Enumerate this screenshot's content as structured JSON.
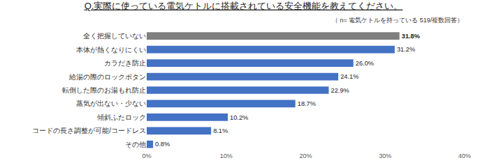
{
  "chart_data": {
    "type": "bar",
    "orientation": "horizontal",
    "title": "Q.実際に使っている電気ケトルに搭載されている安全機能を教えてください。",
    "subtitle": "（ n= 電気ケトルを持っている 519/複数回答）",
    "categories": [
      "全く把握していない",
      "本体が熱くなりにくい",
      "カラだき防止",
      "給湯の際のロックボタン",
      "転倒した際のお湯もれ防止",
      "蒸気が出ない・少ない",
      "傾斜ふたロック",
      "コードの長さ調整が可能/コードレス",
      "その他"
    ],
    "values": [
      31.8,
      31.2,
      26.0,
      24.1,
      22.9,
      18.7,
      10.2,
      8.1,
      0.8
    ],
    "value_labels": [
      "31.8%",
      "31.2%",
      "26.0%",
      "24.1%",
      "22.9%",
      "18.7%",
      "10.2%",
      "8.1%",
      "0.8%"
    ],
    "colors": [
      "#7f7f7f",
      "#4472c4",
      "#4472c4",
      "#4472c4",
      "#4472c4",
      "#4472c4",
      "#4472c4",
      "#4472c4",
      "#4472c4"
    ],
    "xlim": [
      0,
      40
    ],
    "xticks": [
      {
        "value": 0,
        "label": "0%"
      },
      {
        "value": 10,
        "label": "10%"
      },
      {
        "value": 20,
        "label": "20%"
      },
      {
        "value": 30,
        "label": "30%"
      },
      {
        "value": 40,
        "label": "40%"
      }
    ],
    "grid": false,
    "data_labels": true
  }
}
